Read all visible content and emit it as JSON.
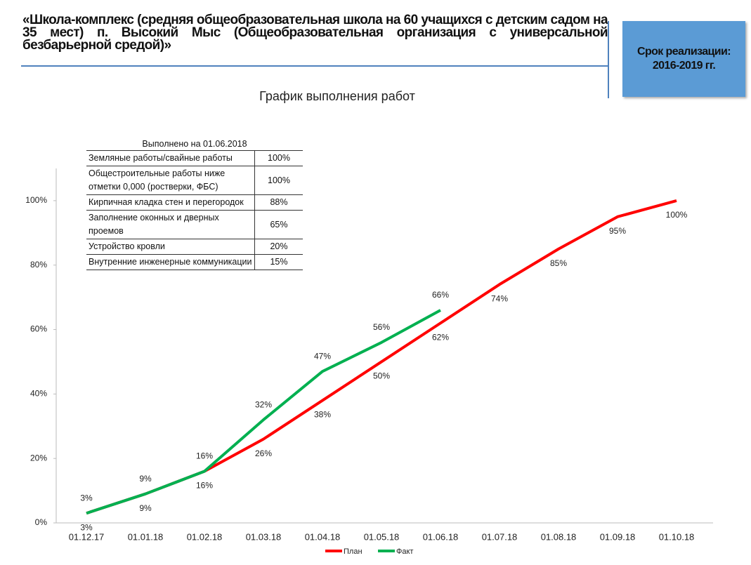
{
  "header": {
    "title": "«Школа-комплекс (средняя общеобразовательная школа на 60 учащихся с детским садом на 35 мест) п. Высокий Мыс (Общеобразовательная организация с универсальной безбарьерной средой)»",
    "period": "Срок реализации: 2016-2019 гг."
  },
  "chart_data": {
    "type": "line",
    "title": "График выполнения работ",
    "categories": [
      "01.12.17",
      "01.01.18",
      "01.02.18",
      "01.03.18",
      "01.04.18",
      "01.05.18",
      "01.06.18",
      "01.07.18",
      "01.08.18",
      "01.09.18",
      "01.10.18"
    ],
    "series": [
      {
        "name": "План",
        "color": "#ff0000",
        "values": [
          3,
          9,
          16,
          26,
          38,
          50,
          62,
          74,
          85,
          95,
          100
        ],
        "value_labels": [
          "3%",
          "9%",
          "16%",
          "26%",
          "38%",
          "50%",
          "62%",
          "74%",
          "85%",
          "95%",
          "100%"
        ]
      },
      {
        "name": "Факт",
        "color": "#00b050",
        "values": [
          3,
          9,
          16,
          32,
          47,
          56,
          66,
          null,
          null,
          null,
          null
        ],
        "value_labels": [
          "3%",
          "9%",
          "16%",
          "32%",
          "47%",
          "56%",
          "66%",
          null,
          null,
          null,
          null
        ]
      }
    ],
    "ylim": [
      0,
      110
    ],
    "yticks": [
      {
        "value": 0,
        "label": "0%"
      },
      {
        "value": 20,
        "label": "20%"
      },
      {
        "value": 40,
        "label": "40%"
      },
      {
        "value": 60,
        "label": "60%"
      },
      {
        "value": 80,
        "label": "80%"
      },
      {
        "value": 100,
        "label": "100%"
      }
    ],
    "legend": "bottom",
    "table": {
      "title": "Выполнено на 01.06.2018",
      "rows": [
        [
          "Земляные работы/свайные работы",
          "100%"
        ],
        [
          "Общестроительные работы ниже отметки 0,000 (ростверки, ФБС)",
          "100%"
        ],
        [
          "Кирпичная кладка стен и перегородок",
          "88%"
        ],
        [
          "Заполнение оконных и дверных проемов",
          "65%"
        ],
        [
          "Устройство кровли",
          "20%"
        ],
        [
          "Внутренние инженерные коммуникации",
          "15%"
        ]
      ]
    }
  }
}
